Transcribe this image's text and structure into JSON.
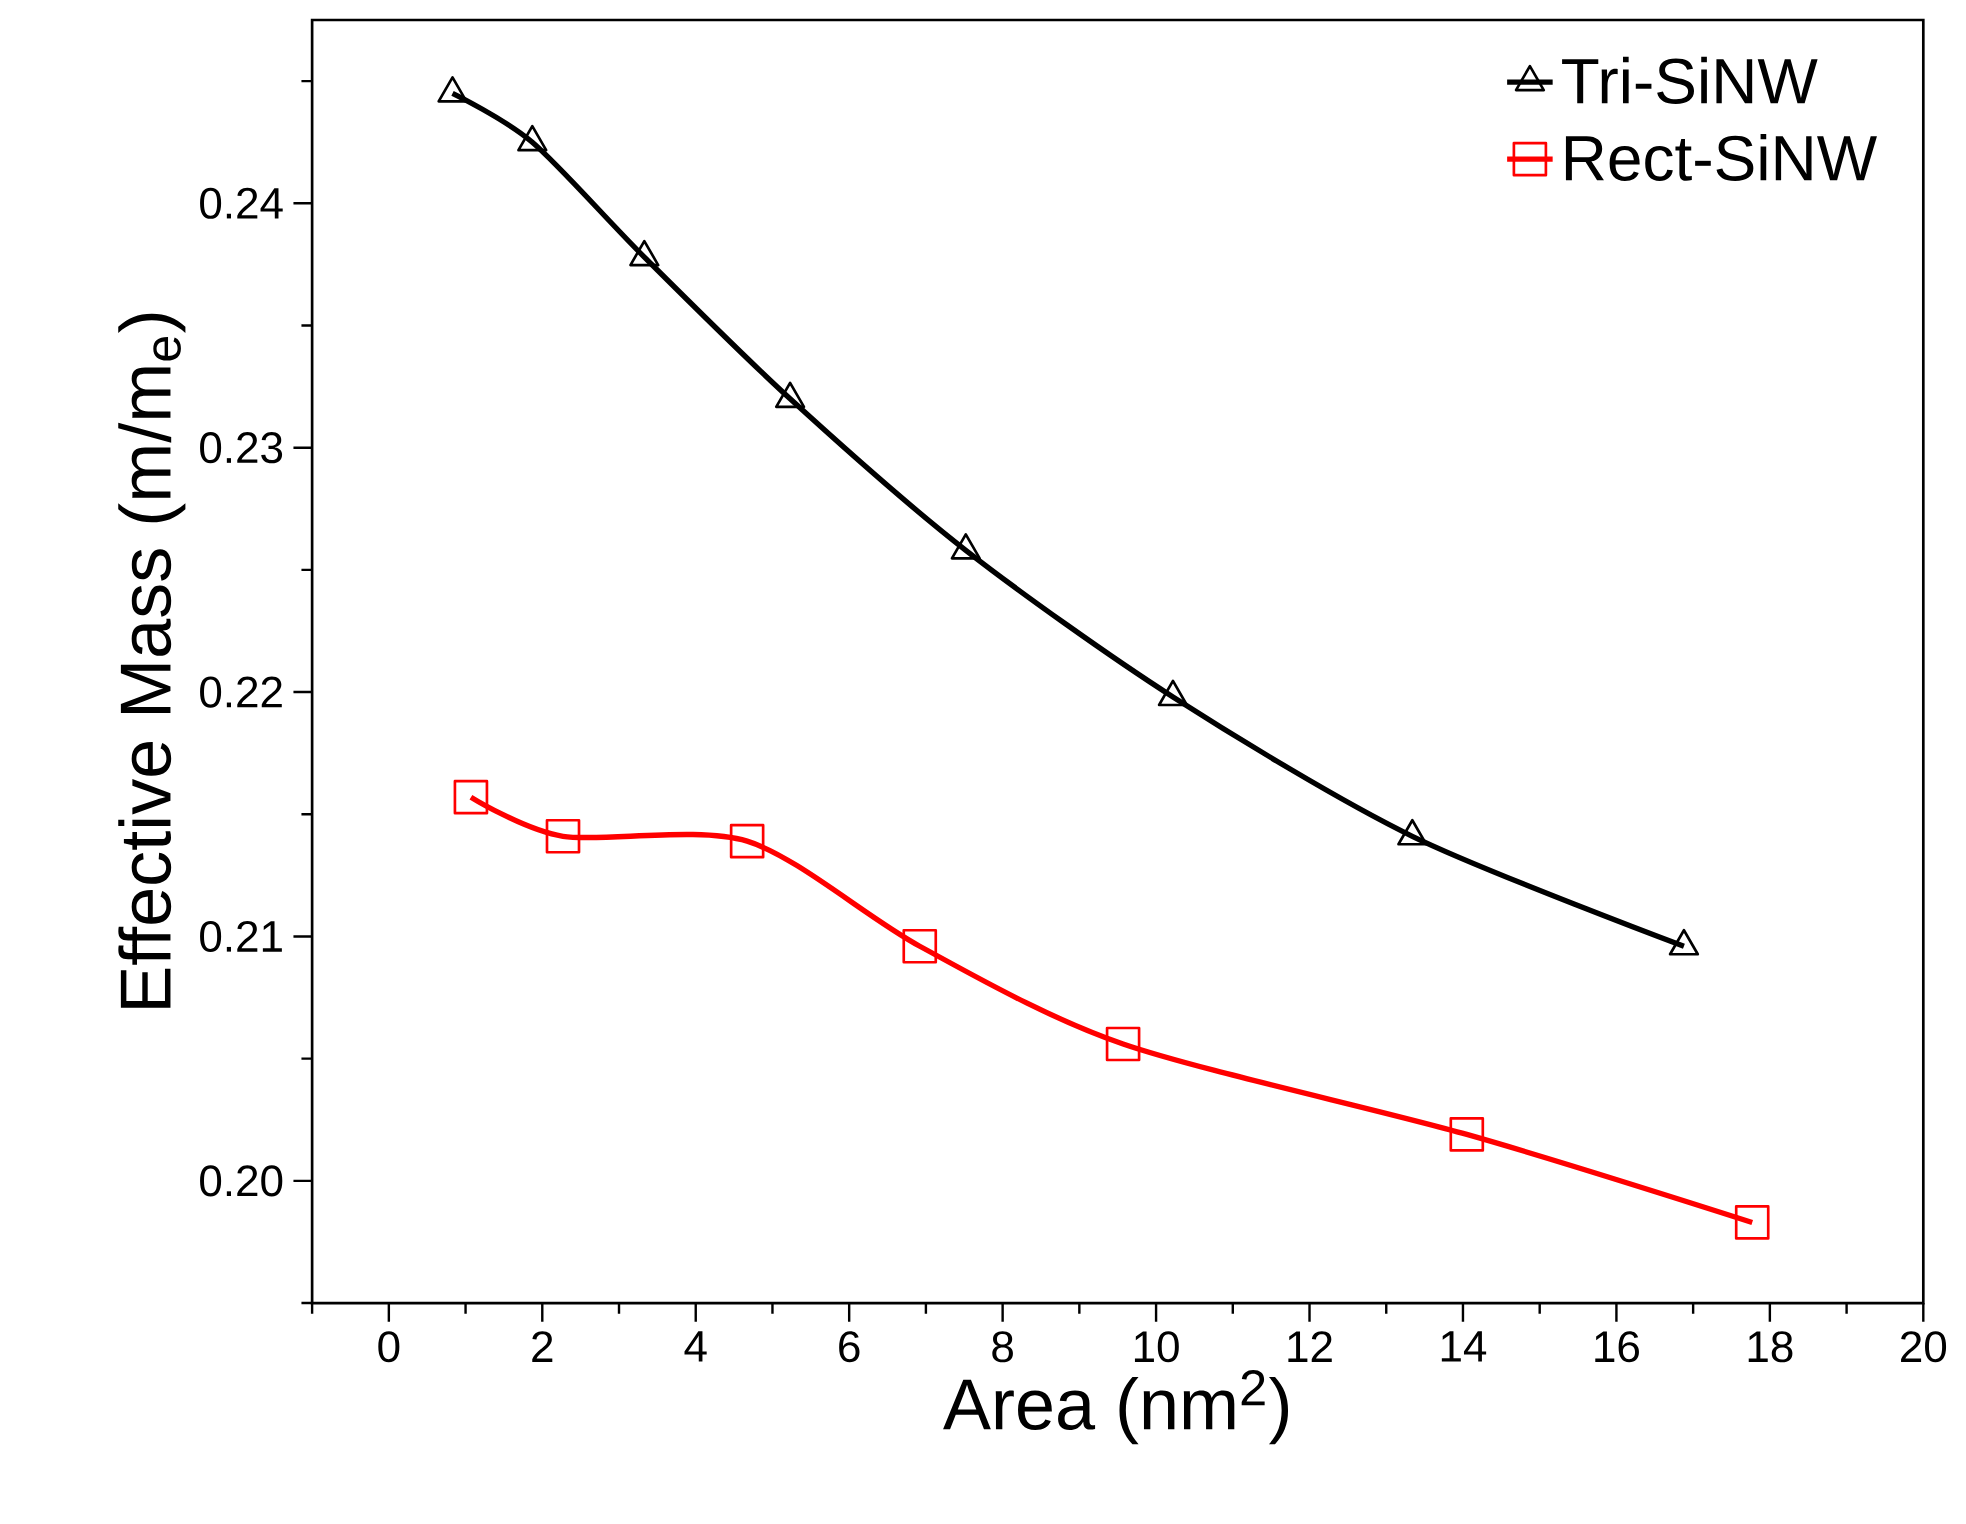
{
  "chart_data": {
    "type": "line",
    "xlabel": "Area (nm$^{2}$)",
    "ylabel": "Effective Mass (m/m$_{e}$)",
    "xlim": [
      -1,
      20
    ],
    "xticks": [
      {
        "value": -1,
        "label": null
      },
      0,
      {
        "value": 1,
        "label": null
      },
      2,
      {
        "value": 3,
        "label": null
      },
      4,
      {
        "value": 5,
        "label": null
      },
      6,
      {
        "value": 7,
        "label": null
      },
      8,
      {
        "value": 9,
        "label": null
      },
      10,
      {
        "value": 11,
        "label": null
      },
      12,
      {
        "value": 13,
        "label": null
      },
      14,
      {
        "value": 15,
        "label": null
      },
      16,
      {
        "value": 17,
        "label": null
      },
      18,
      {
        "value": 19,
        "label": null
      },
      20
    ],
    "ylim": [
      0.195,
      0.2475
    ],
    "yticks": [
      {
        "value": 0.195,
        "label": null
      },
      {
        "value": 0.2,
        "label": "0.20"
      },
      {
        "value": 0.205,
        "label": null
      },
      {
        "value": 0.21,
        "label": "0.21"
      },
      {
        "value": 0.215,
        "label": null
      },
      {
        "value": 0.22,
        "label": "0.22"
      },
      {
        "value": 0.225,
        "label": null
      },
      {
        "value": 0.23,
        "label": "0.23"
      },
      {
        "value": 0.235,
        "label": null
      },
      {
        "value": 0.24,
        "label": "0.24"
      },
      {
        "value": 0.245,
        "label": null
      }
    ],
    "grid": false,
    "legend": "top right",
    "line_style": "solid",
    "series": [
      {
        "name": "Tri-SiNW",
        "color": "#000000",
        "marker": "triangle",
        "x": [
          0.83,
          1.87,
          3.33,
          5.23,
          7.52,
          10.22,
          13.34,
          16.88
        ],
        "values": [
          0.2445,
          0.2425,
          0.2378,
          0.232,
          0.2258,
          0.2198,
          0.2141,
          0.2096
        ]
      },
      {
        "name": "Rect-SiNW",
        "color": "#ff0000",
        "marker": "square",
        "x": [
          1.07,
          2.27,
          4.67,
          6.92,
          9.57,
          14.05,
          17.77
        ],
        "values": [
          0.2157,
          0.2141,
          0.2139,
          0.2096,
          0.2056,
          0.2019,
          0.1983
        ]
      }
    ]
  }
}
